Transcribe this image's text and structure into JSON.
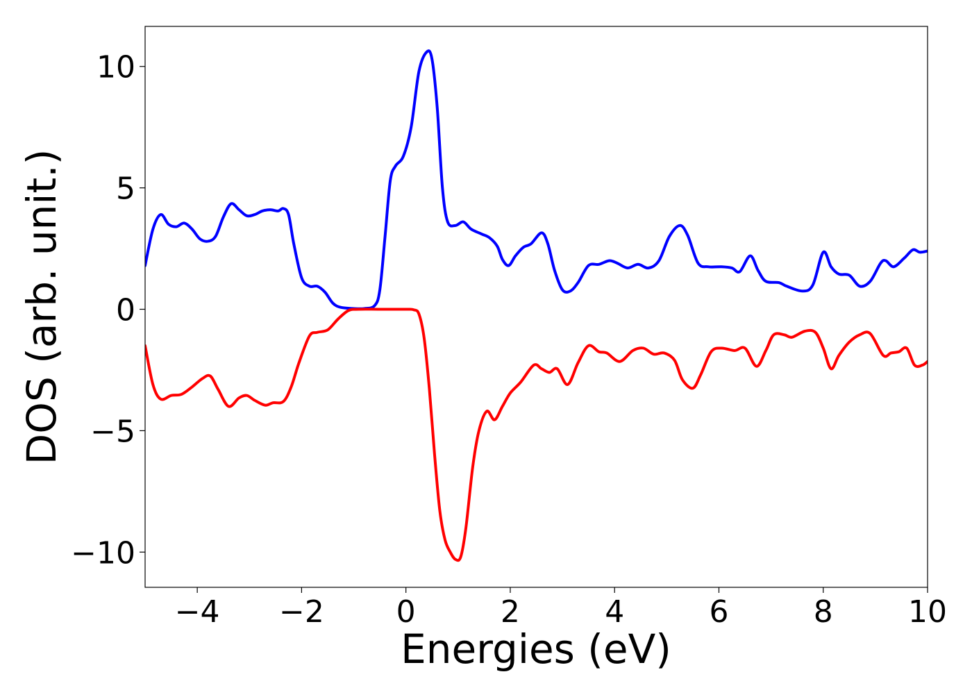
{
  "chart_data": {
    "type": "line",
    "title": "",
    "xlabel": "Energies (eV)",
    "ylabel": "DOS (arb. unit.)",
    "xlim": [
      -5,
      10
    ],
    "ylim": [
      -11.45,
      11.65
    ],
    "grid": false,
    "legend": "none",
    "x_ticks": [
      {
        "value": -4,
        "label": "−4"
      },
      {
        "value": -2,
        "label": "−2"
      },
      {
        "value": 0,
        "label": "0"
      },
      {
        "value": 2,
        "label": "2"
      },
      {
        "value": 4,
        "label": "4"
      },
      {
        "value": 6,
        "label": "6"
      },
      {
        "value": 8,
        "label": "8"
      },
      {
        "value": 10,
        "label": "10"
      }
    ],
    "y_ticks": [
      {
        "value": 10,
        "label": "10"
      },
      {
        "value": 5,
        "label": "5"
      },
      {
        "value": 0,
        "label": "0"
      },
      {
        "value": -5,
        "label": "−5"
      },
      {
        "value": -10,
        "label": "−10"
      }
    ],
    "series": [
      {
        "color": "#0000ff",
        "points": [
          [
            -5.0,
            1.8
          ],
          [
            -4.85,
            3.3
          ],
          [
            -4.7,
            3.9
          ],
          [
            -4.55,
            3.5
          ],
          [
            -4.4,
            3.4
          ],
          [
            -4.25,
            3.55
          ],
          [
            -4.1,
            3.3
          ],
          [
            -3.95,
            2.9
          ],
          [
            -3.8,
            2.8
          ],
          [
            -3.65,
            3.0
          ],
          [
            -3.5,
            3.8
          ],
          [
            -3.35,
            4.35
          ],
          [
            -3.2,
            4.1
          ],
          [
            -3.05,
            3.85
          ],
          [
            -2.9,
            3.9
          ],
          [
            -2.75,
            4.05
          ],
          [
            -2.6,
            4.1
          ],
          [
            -2.45,
            4.05
          ],
          [
            -2.35,
            4.15
          ],
          [
            -2.25,
            3.9
          ],
          [
            -2.15,
            2.7
          ],
          [
            -2.0,
            1.3
          ],
          [
            -1.85,
            0.95
          ],
          [
            -1.7,
            0.95
          ],
          [
            -1.55,
            0.7
          ],
          [
            -1.4,
            0.25
          ],
          [
            -1.25,
            0.08
          ],
          [
            -1.0,
            0.03
          ],
          [
            -0.8,
            0.03
          ],
          [
            -0.6,
            0.15
          ],
          [
            -0.5,
            0.8
          ],
          [
            -0.4,
            3.0
          ],
          [
            -0.3,
            5.3
          ],
          [
            -0.2,
            5.9
          ],
          [
            -0.05,
            6.3
          ],
          [
            0.1,
            7.5
          ],
          [
            0.25,
            9.8
          ],
          [
            0.4,
            10.6
          ],
          [
            0.5,
            10.3
          ],
          [
            0.6,
            8.3
          ],
          [
            0.7,
            5.0
          ],
          [
            0.8,
            3.6
          ],
          [
            0.95,
            3.45
          ],
          [
            1.1,
            3.6
          ],
          [
            1.25,
            3.3
          ],
          [
            1.45,
            3.1
          ],
          [
            1.6,
            2.95
          ],
          [
            1.75,
            2.6
          ],
          [
            1.85,
            2.05
          ],
          [
            1.97,
            1.8
          ],
          [
            2.1,
            2.2
          ],
          [
            2.25,
            2.55
          ],
          [
            2.4,
            2.7
          ],
          [
            2.6,
            3.15
          ],
          [
            2.72,
            2.7
          ],
          [
            2.85,
            1.6
          ],
          [
            3.0,
            0.8
          ],
          [
            3.15,
            0.75
          ],
          [
            3.3,
            1.1
          ],
          [
            3.5,
            1.8
          ],
          [
            3.7,
            1.85
          ],
          [
            3.9,
            2.0
          ],
          [
            4.05,
            1.9
          ],
          [
            4.25,
            1.7
          ],
          [
            4.45,
            1.85
          ],
          [
            4.65,
            1.7
          ],
          [
            4.85,
            2.0
          ],
          [
            5.05,
            3.0
          ],
          [
            5.25,
            3.45
          ],
          [
            5.4,
            3.05
          ],
          [
            5.6,
            1.9
          ],
          [
            5.8,
            1.75
          ],
          [
            6.05,
            1.75
          ],
          [
            6.25,
            1.7
          ],
          [
            6.4,
            1.55
          ],
          [
            6.6,
            2.2
          ],
          [
            6.75,
            1.6
          ],
          [
            6.9,
            1.15
          ],
          [
            7.15,
            1.1
          ],
          [
            7.3,
            0.95
          ],
          [
            7.6,
            0.75
          ],
          [
            7.8,
            1.0
          ],
          [
            8.0,
            2.35
          ],
          [
            8.15,
            1.75
          ],
          [
            8.3,
            1.45
          ],
          [
            8.5,
            1.4
          ],
          [
            8.7,
            0.95
          ],
          [
            8.9,
            1.15
          ],
          [
            9.1,
            1.9
          ],
          [
            9.2,
            2.0
          ],
          [
            9.35,
            1.75
          ],
          [
            9.55,
            2.1
          ],
          [
            9.72,
            2.45
          ],
          [
            9.85,
            2.35
          ],
          [
            10.0,
            2.4
          ]
        ]
      },
      {
        "color": "#ff0000",
        "points": [
          [
            -5.0,
            -1.5
          ],
          [
            -4.85,
            -3.1
          ],
          [
            -4.7,
            -3.7
          ],
          [
            -4.5,
            -3.55
          ],
          [
            -4.3,
            -3.5
          ],
          [
            -4.1,
            -3.2
          ],
          [
            -3.9,
            -2.85
          ],
          [
            -3.75,
            -2.75
          ],
          [
            -3.6,
            -3.3
          ],
          [
            -3.4,
            -4.0
          ],
          [
            -3.2,
            -3.65
          ],
          [
            -3.05,
            -3.55
          ],
          [
            -2.9,
            -3.75
          ],
          [
            -2.7,
            -3.95
          ],
          [
            -2.55,
            -3.85
          ],
          [
            -2.35,
            -3.8
          ],
          [
            -2.2,
            -3.2
          ],
          [
            -2.05,
            -2.2
          ],
          [
            -1.85,
            -1.1
          ],
          [
            -1.7,
            -0.95
          ],
          [
            -1.5,
            -0.85
          ],
          [
            -1.3,
            -0.4
          ],
          [
            -1.1,
            -0.05
          ],
          [
            -0.9,
            0.0
          ],
          [
            -0.5,
            0.0
          ],
          [
            0.0,
            0.0
          ],
          [
            0.15,
            -0.02
          ],
          [
            0.25,
            -0.2
          ],
          [
            0.35,
            -1.2
          ],
          [
            0.45,
            -3.3
          ],
          [
            0.55,
            -6.0
          ],
          [
            0.65,
            -8.3
          ],
          [
            0.75,
            -9.5
          ],
          [
            0.85,
            -10.0
          ],
          [
            0.95,
            -10.3
          ],
          [
            1.05,
            -10.2
          ],
          [
            1.15,
            -9.0
          ],
          [
            1.28,
            -6.5
          ],
          [
            1.4,
            -5.0
          ],
          [
            1.55,
            -4.2
          ],
          [
            1.7,
            -4.55
          ],
          [
            1.85,
            -4.0
          ],
          [
            2.0,
            -3.45
          ],
          [
            2.2,
            -3.0
          ],
          [
            2.45,
            -2.3
          ],
          [
            2.6,
            -2.45
          ],
          [
            2.75,
            -2.6
          ],
          [
            2.9,
            -2.45
          ],
          [
            3.1,
            -3.1
          ],
          [
            3.3,
            -2.2
          ],
          [
            3.5,
            -1.5
          ],
          [
            3.7,
            -1.75
          ],
          [
            3.85,
            -1.8
          ],
          [
            4.1,
            -2.15
          ],
          [
            4.35,
            -1.7
          ],
          [
            4.55,
            -1.6
          ],
          [
            4.75,
            -1.85
          ],
          [
            4.95,
            -1.8
          ],
          [
            5.15,
            -2.1
          ],
          [
            5.3,
            -2.9
          ],
          [
            5.5,
            -3.25
          ],
          [
            5.65,
            -2.7
          ],
          [
            5.85,
            -1.75
          ],
          [
            6.05,
            -1.6
          ],
          [
            6.3,
            -1.7
          ],
          [
            6.5,
            -1.6
          ],
          [
            6.72,
            -2.35
          ],
          [
            6.9,
            -1.7
          ],
          [
            7.05,
            -1.05
          ],
          [
            7.25,
            -1.05
          ],
          [
            7.4,
            -1.15
          ],
          [
            7.65,
            -0.9
          ],
          [
            7.85,
            -0.95
          ],
          [
            8.0,
            -1.6
          ],
          [
            8.15,
            -2.45
          ],
          [
            8.3,
            -1.9
          ],
          [
            8.5,
            -1.35
          ],
          [
            8.7,
            -1.05
          ],
          [
            8.9,
            -1.0
          ],
          [
            9.15,
            -1.9
          ],
          [
            9.3,
            -1.8
          ],
          [
            9.45,
            -1.75
          ],
          [
            9.6,
            -1.6
          ],
          [
            9.75,
            -2.3
          ],
          [
            9.9,
            -2.3
          ],
          [
            10.0,
            -2.15
          ]
        ]
      }
    ]
  }
}
